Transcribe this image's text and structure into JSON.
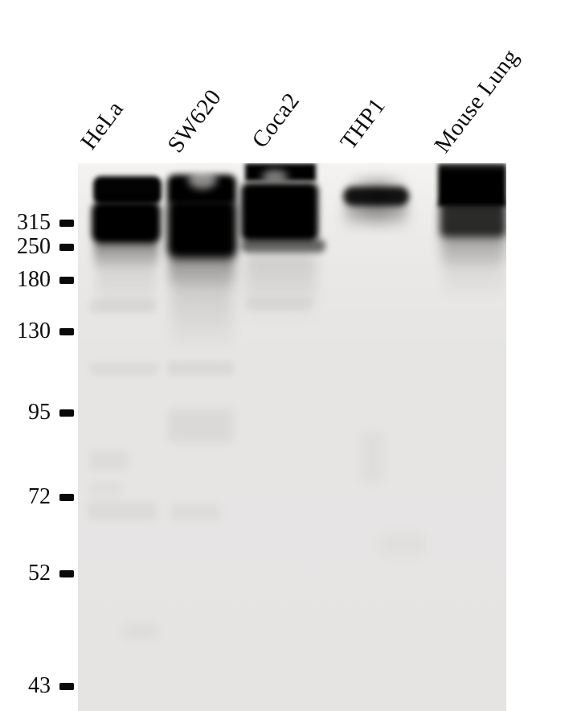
{
  "figure": {
    "type": "western-blot",
    "background_color": "#ffffff",
    "membrane_color": "#e6e5e4",
    "band_color": "#000000",
    "text_color": "#0c0c0c"
  },
  "lanes": [
    {
      "label": "HeLa"
    },
    {
      "label": "SW620"
    },
    {
      "label": "Coca2"
    },
    {
      "label": "THP1"
    },
    {
      "label": "Mouse Lung"
    }
  ],
  "markers": [
    {
      "label": "315"
    },
    {
      "label": "250"
    },
    {
      "label": "180"
    },
    {
      "label": "130"
    },
    {
      "label": "95"
    },
    {
      "label": "72"
    },
    {
      "label": "52"
    },
    {
      "label": "43"
    }
  ],
  "observed_bands": [
    {
      "lane": "HeLa",
      "description": "strong double band between ~250 and above 315, faint smears below"
    },
    {
      "lane": "SW620",
      "description": "strong broad band ~250 to above 315 with long downward smear, faint band near 180"
    },
    {
      "lane": "Coca2",
      "description": "strong band above 315 touching top edge, plus distinct band at ~250"
    },
    {
      "lane": "THP1",
      "description": "moderate single band above 315"
    },
    {
      "lane": "Mouse Lung",
      "description": "strong band above 315 touching top edge, fading toward 250"
    }
  ]
}
